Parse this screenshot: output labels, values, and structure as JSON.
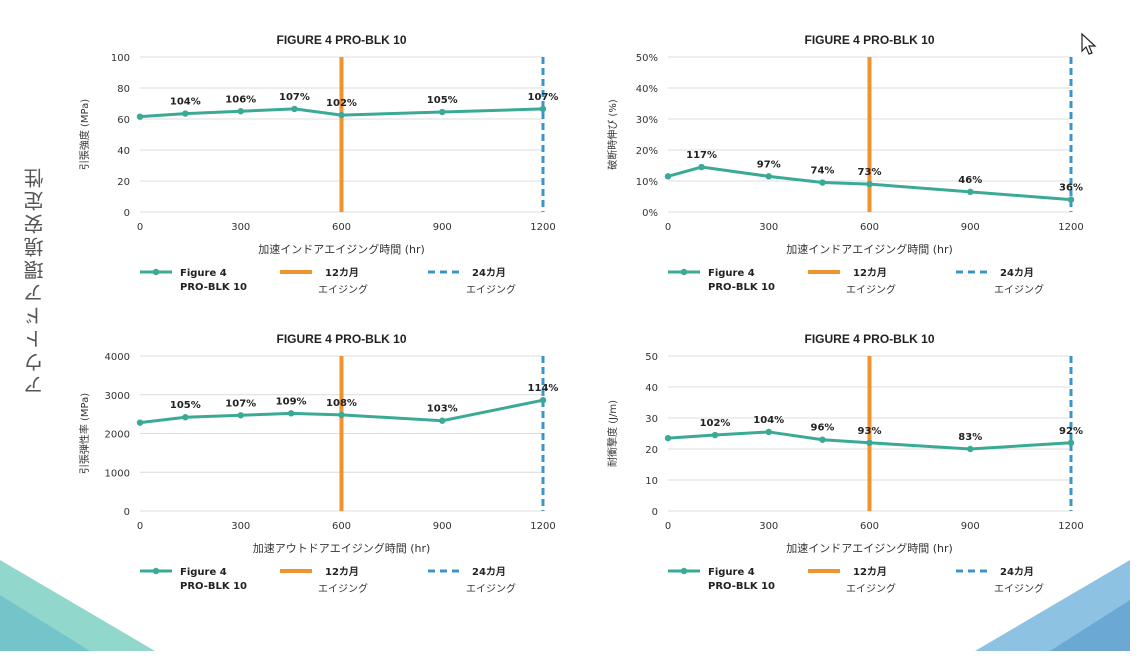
{
  "page": {
    "side_title": "アウトドア環境安定性",
    "colors": {
      "series": "#3aaa96",
      "line12": "#f0922e",
      "line24": "#3e94c8",
      "grid": "#dcdcdc",
      "text": "#333333"
    }
  },
  "chart_data": [
    {
      "type": "line",
      "title": "FIGURE 4 PRO-BLK 10",
      "xlabel": "加速インドアエイジング時間 (hr)",
      "ylabel": "引張強度 (MPa)",
      "xlim": [
        0,
        1200
      ],
      "ylim": [
        0,
        100
      ],
      "xticks": [
        "0",
        "300",
        "600",
        "900",
        "1200"
      ],
      "yticks": [
        "0",
        "20",
        "40",
        "60",
        "80",
        "100"
      ],
      "series": [
        {
          "name": "Figure 4 PRO-BLK 10",
          "x": [
            0,
            135,
            300,
            460,
            600,
            900,
            1200
          ],
          "y": [
            61.5,
            63.5,
            65,
            66.5,
            62.5,
            64.5,
            66.5
          ]
        }
      ],
      "labels": [
        {
          "x": 135,
          "y": 63.5,
          "text": "104%"
        },
        {
          "x": 300,
          "y": 65,
          "text": "106%"
        },
        {
          "x": 460,
          "y": 66.5,
          "text": "107%"
        },
        {
          "x": 600,
          "y": 62.5,
          "text": "102%"
        },
        {
          "x": 900,
          "y": 64.5,
          "text": "105%"
        },
        {
          "x": 1200,
          "y": 66.5,
          "text": "107%"
        }
      ],
      "vlines": [
        {
          "x": 600,
          "name": "12カ月 エイジング"
        },
        {
          "x": 1200,
          "name": "24カ月 エイジング"
        }
      ],
      "legend": [
        {
          "line1": "Figure 4",
          "line2": "PRO-BLK 10"
        },
        {
          "line1": "12カ月",
          "line2": "エイジング"
        },
        {
          "line1": "24カ月",
          "line2": "エイジング"
        }
      ]
    },
    {
      "type": "line",
      "title": "FIGURE 4 PRO-BLK 10",
      "xlabel": "加速インドアエイジング時間 (hr)",
      "ylabel": "破断時伸び (%)",
      "xlim": [
        0,
        1200
      ],
      "ylim": [
        0,
        50
      ],
      "xticks": [
        "0",
        "300",
        "600",
        "900",
        "1200"
      ],
      "yticks": [
        "0%",
        "10%",
        "20%",
        "30%",
        "40%",
        "50%"
      ],
      "series": [
        {
          "name": "Figure 4 PRO-BLK 10",
          "x": [
            0,
            100,
            300,
            460,
            600,
            900,
            1200
          ],
          "y": [
            11.5,
            14.5,
            11.5,
            9.5,
            9,
            6.5,
            4
          ]
        }
      ],
      "labels": [
        {
          "x": 100,
          "y": 14.5,
          "text": "117%"
        },
        {
          "x": 300,
          "y": 11.5,
          "text": "97%"
        },
        {
          "x": 460,
          "y": 9.5,
          "text": "74%"
        },
        {
          "x": 600,
          "y": 9,
          "text": "73%"
        },
        {
          "x": 900,
          "y": 6.5,
          "text": "46%"
        },
        {
          "x": 1200,
          "y": 4,
          "text": "36%"
        }
      ],
      "vlines": [
        {
          "x": 600,
          "name": "12カ月 エイジング"
        },
        {
          "x": 1200,
          "name": "24カ月 エイジング"
        }
      ],
      "legend": [
        {
          "line1": "Figure 4",
          "line2": "PRO-BLK 10"
        },
        {
          "line1": "12カ月",
          "line2": "エイジング"
        },
        {
          "line1": "24カ月",
          "line2": "エイジング"
        }
      ]
    },
    {
      "type": "line",
      "title": "FIGURE 4 PRO-BLK 10",
      "xlabel": "加速アウトドアエイジング時間 (hr)",
      "ylabel": "引張弾性率 (MPa)",
      "xlim": [
        0,
        1200
      ],
      "ylim": [
        0,
        4000
      ],
      "xticks": [
        "0",
        "300",
        "600",
        "900",
        "1200"
      ],
      "yticks": [
        "0",
        "1000",
        "2000",
        "3000",
        "4000"
      ],
      "series": [
        {
          "name": "Figure 4 PRO-BLK 10",
          "x": [
            0,
            135,
            300,
            450,
            600,
            900,
            1200
          ],
          "y": [
            2280,
            2420,
            2470,
            2520,
            2480,
            2330,
            2860
          ]
        }
      ],
      "labels": [
        {
          "x": 135,
          "y": 2420,
          "text": "105%"
        },
        {
          "x": 300,
          "y": 2470,
          "text": "107%"
        },
        {
          "x": 450,
          "y": 2520,
          "text": "109%"
        },
        {
          "x": 600,
          "y": 2480,
          "text": "108%"
        },
        {
          "x": 900,
          "y": 2330,
          "text": "103%"
        },
        {
          "x": 1200,
          "y": 2860,
          "text": "114%"
        }
      ],
      "vlines": [
        {
          "x": 600,
          "name": "12カ月 エイジング"
        },
        {
          "x": 1200,
          "name": "24カ月 エイジング"
        }
      ],
      "legend": [
        {
          "line1": "Figure 4",
          "line2": "PRO-BLK 10"
        },
        {
          "line1": "12カ月",
          "line2": "エイジング"
        },
        {
          "line1": "24カ月",
          "line2": "エイジング"
        }
      ]
    },
    {
      "type": "line",
      "title": "FIGURE 4 PRO-BLK 10",
      "xlabel": "加速インドアエイジング時間 (hr)",
      "ylabel": "耐衝撃度 (J/m)",
      "xlim": [
        0,
        1200
      ],
      "ylim": [
        0,
        50
      ],
      "xticks": [
        "0",
        "300",
        "600",
        "900",
        "1200"
      ],
      "yticks": [
        "0",
        "10",
        "20",
        "30",
        "40",
        "50"
      ],
      "series": [
        {
          "name": "Figure 4 PRO-BLK 10",
          "x": [
            0,
            140,
            300,
            460,
            600,
            900,
            1200
          ],
          "y": [
            23.5,
            24.5,
            25.5,
            23,
            22,
            20,
            22
          ]
        }
      ],
      "labels": [
        {
          "x": 140,
          "y": 24.5,
          "text": "102%"
        },
        {
          "x": 300,
          "y": 25.5,
          "text": "104%"
        },
        {
          "x": 460,
          "y": 23,
          "text": "96%"
        },
        {
          "x": 600,
          "y": 22,
          "text": "93%"
        },
        {
          "x": 900,
          "y": 20,
          "text": "83%"
        },
        {
          "x": 1200,
          "y": 22,
          "text": "92%"
        }
      ],
      "vlines": [
        {
          "x": 600,
          "name": "12カ月 エイジング"
        },
        {
          "x": 1200,
          "name": "24カ月 エイジング"
        }
      ],
      "legend": [
        {
          "line1": "Figure 4",
          "line2": "PRO-BLK 10"
        },
        {
          "line1": "12カ月",
          "line2": "エイジング"
        },
        {
          "line1": "24カ月",
          "line2": "エイジング"
        }
      ]
    }
  ]
}
